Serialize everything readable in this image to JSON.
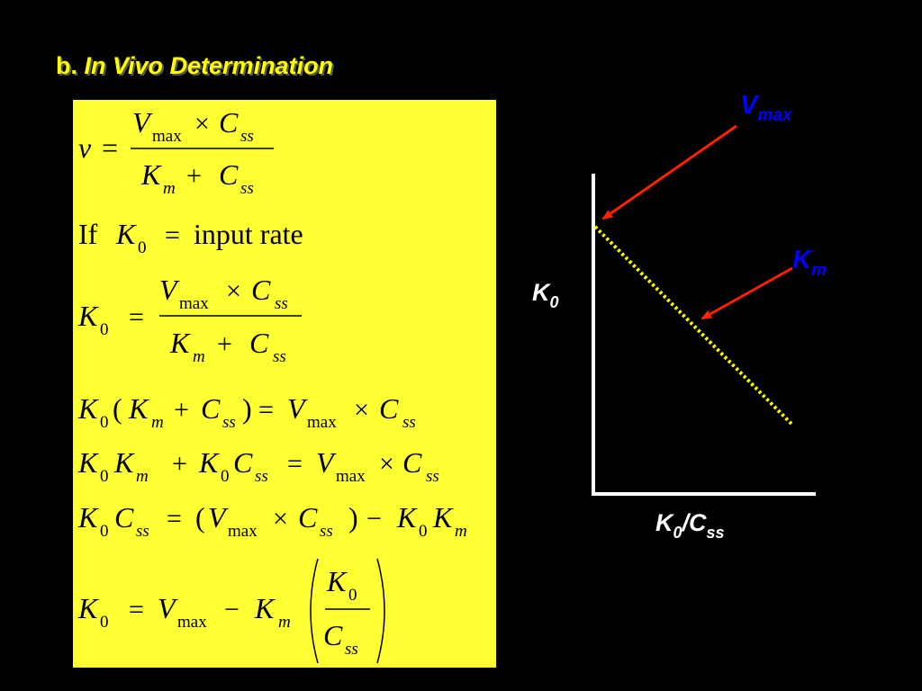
{
  "title": {
    "prefix": "b.",
    "text": "In Vivo Determination"
  },
  "equations": {
    "eq1": {
      "lhs": "v",
      "num_V": "V",
      "num_max": "max",
      "num_C": "C",
      "num_ss": "ss",
      "den_K": "K",
      "den_m": "m",
      "den_C": "C",
      "den_ss": "ss"
    },
    "eq2": {
      "if": "If",
      "K": "K",
      "sub0": "0",
      "rhs": "input rate"
    },
    "eq3": {
      "K": "K",
      "sub0": "0",
      "num_V": "V",
      "num_max": "max",
      "num_C": "C",
      "num_ss": "ss",
      "den_K": "K",
      "den_m": "m",
      "den_C": "C",
      "den_ss": "ss"
    },
    "eq4": {
      "K": "K",
      "sub0": "0",
      "Km": "K",
      "m": "m",
      "C": "C",
      "ss": "ss",
      "V": "V",
      "max": "max",
      "C2": "C",
      "ss2": "ss"
    },
    "eq5": {
      "K": "K",
      "sub0": "0",
      "Km": "K",
      "m": "m",
      "K2": "K",
      "sub02": "0",
      "C": "C",
      "ss": "ss",
      "V": "V",
      "max": "max",
      "C2": "C",
      "ss2": "ss"
    },
    "eq6": {
      "K": "K",
      "sub0": "0",
      "C": "C",
      "ss": "ss",
      "V": "V",
      "max": "max",
      "C2": "C",
      "ss2": "ss",
      "K2": "K",
      "sub02": "0",
      "K3": "K",
      "m": "m"
    },
    "eq7": {
      "K": "K",
      "sub0": "0",
      "V": "V",
      "max": "max",
      "Km": "K",
      "m": "m",
      "fnum_K": "K",
      "fnum_0": "0",
      "fden_C": "C",
      "fden_ss": "ss"
    }
  },
  "graph": {
    "vmax_label": {
      "main": "V",
      "sub": "max"
    },
    "km_label": {
      "main": "K",
      "sub": "m"
    },
    "y_label": {
      "main": "K",
      "sub": "0"
    },
    "x_label": {
      "main": "K",
      "sub": "0",
      "slash": "/",
      "main2": "C",
      "sub2": "ss"
    }
  },
  "colors": {
    "background": "#000000",
    "title": "#ffff00",
    "equation_box": "#ffff33",
    "arrow": "#ff2200",
    "label": "#0000ff",
    "axis_label": "#ffffff",
    "dotted_line": "#ffff00"
  }
}
